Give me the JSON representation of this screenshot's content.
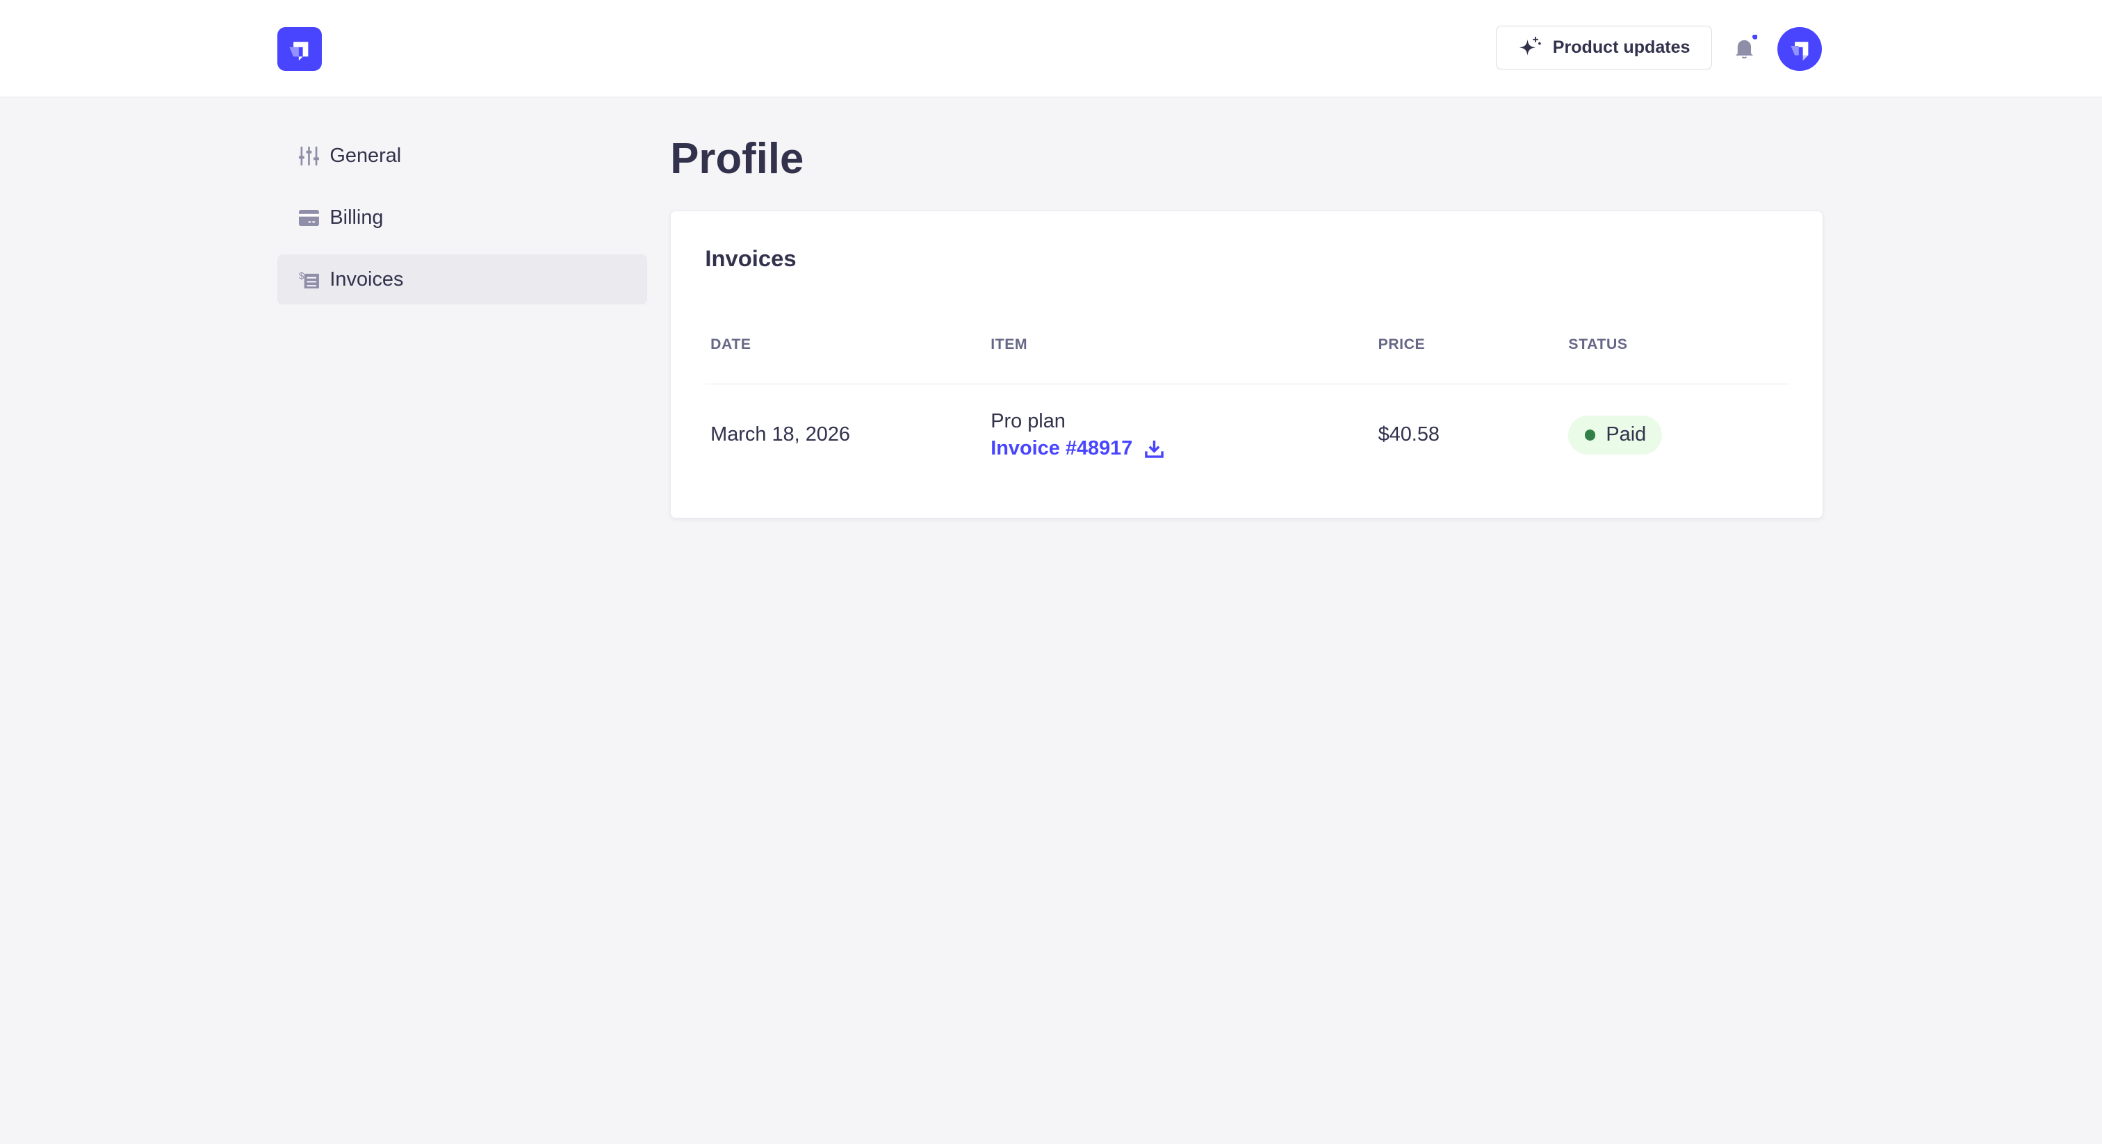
{
  "header": {
    "product_updates": "Product updates",
    "has_notification": true
  },
  "sidebar": {
    "items": [
      {
        "label": "General",
        "icon": "sliders-icon"
      },
      {
        "label": "Billing",
        "icon": "credit-card-icon"
      },
      {
        "label": "Invoices",
        "icon": "invoice-icon",
        "active": true
      }
    ]
  },
  "page": {
    "title": "Profile"
  },
  "invoices": {
    "title": "Invoices",
    "columns": [
      "Date",
      "Item",
      "Price",
      "Status"
    ],
    "rows": [
      {
        "date": "March 18, 2026",
        "item": "Pro plan",
        "invoice": "Invoice #48917",
        "price": "$40.58",
        "status": "Paid"
      }
    ]
  },
  "colors": {
    "brand": "#4945ff",
    "success": "#328048",
    "success_bg": "#eafbe7"
  }
}
